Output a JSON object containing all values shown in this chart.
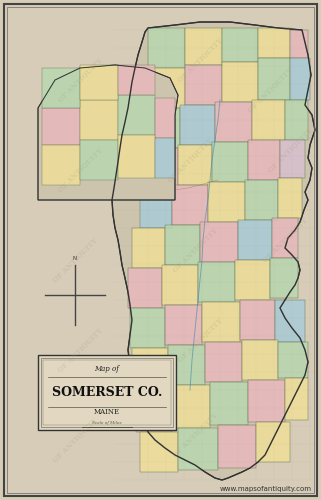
{
  "bg_outer": "#b8aa96",
  "bg_paper": "#d6ccb8",
  "border_color": "#555555",
  "watermark_text": "OF ANTIQUITY",
  "watermark_color": "#a89878",
  "watermark_alpha": 0.22,
  "title_main": "SOMERSET CO.",
  "title_sub": "Map of",
  "title_state": "MAINE",
  "title_fontsize": 9,
  "title_sub_fontsize": 5,
  "title_state_fontsize": 5,
  "website_text": "www.mapsofantiquity.com",
  "website_fontsize": 5,
  "map_colors_pink": "#e8b8bc",
  "map_colors_yellow": "#f0e098",
  "map_colors_green": "#b8d8b0",
  "map_colors_blue": "#a8ccd8",
  "map_colors_lavender": "#d8c0d0",
  "map_colors_ltgreen": "#c8ddb0",
  "dotted_color": "#666666"
}
